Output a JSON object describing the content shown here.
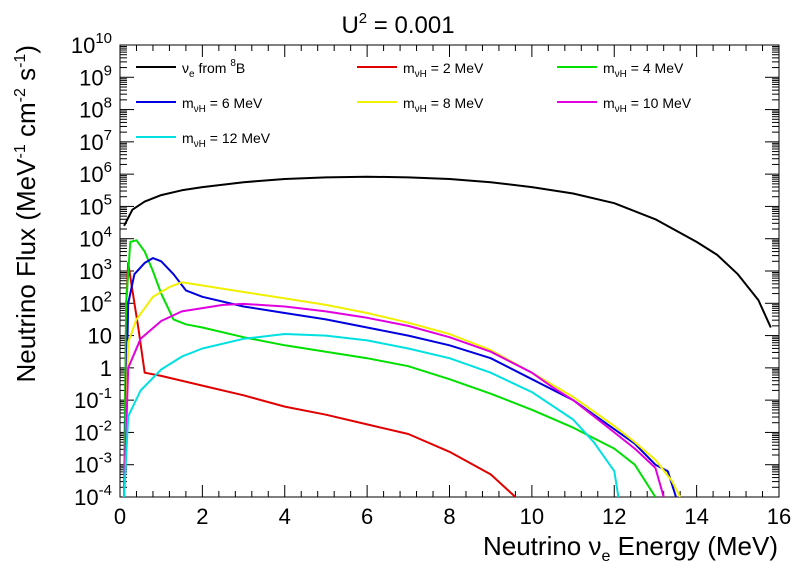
{
  "chart_data": {
    "type": "line",
    "title": {
      "base": "U",
      "sup": "2",
      "rest": " = 0.001"
    },
    "xlabel": {
      "pre": "Neutrino ",
      "nu": "ν",
      "sub": "e",
      "post": " Energy (MeV)"
    },
    "ylabel": {
      "pre": "Neutrino Flux (MeV",
      "sup1": "-1",
      "mid": " cm",
      "sup2": "-2",
      "mid2": " s",
      "sup3": "-1",
      "post": ")"
    },
    "xlim": [
      0,
      16
    ],
    "ylim_log10": [
      -4,
      10
    ],
    "xticks": [
      {
        "v": 0,
        "label": "0"
      },
      {
        "v": 2,
        "label": "2"
      },
      {
        "v": 4,
        "label": "4"
      },
      {
        "v": 6,
        "label": "6"
      },
      {
        "v": 8,
        "label": "8"
      },
      {
        "v": 10,
        "label": "10"
      },
      {
        "v": 12,
        "label": "12"
      },
      {
        "v": 14,
        "label": "14"
      },
      {
        "v": 16,
        "label": "16"
      }
    ],
    "yticks": [
      {
        "e": -4,
        "base": "10",
        "sup": "-4"
      },
      {
        "e": -3,
        "base": "10",
        "sup": "-3"
      },
      {
        "e": -2,
        "base": "10",
        "sup": "-2"
      },
      {
        "e": -1,
        "base": "10",
        "sup": "-1"
      },
      {
        "e": 0,
        "base": "1",
        "sup": ""
      },
      {
        "e": 1,
        "base": "10",
        "sup": ""
      },
      {
        "e": 2,
        "base": "10",
        "sup": "2"
      },
      {
        "e": 3,
        "base": "10",
        "sup": "3"
      },
      {
        "e": 4,
        "base": "10",
        "sup": "4"
      },
      {
        "e": 5,
        "base": "10",
        "sup": "5"
      },
      {
        "e": 6,
        "base": "10",
        "sup": "6"
      },
      {
        "e": 7,
        "base": "10",
        "sup": "7"
      },
      {
        "e": 8,
        "base": "10",
        "sup": "8"
      },
      {
        "e": 9,
        "base": "10",
        "sup": "9"
      },
      {
        "e": 10,
        "base": "10",
        "sup": "10"
      }
    ],
    "legend_position": "top",
    "series": [
      {
        "name": "ve from 8B",
        "legend": {
          "pre": "ν",
          "sub": "e",
          "mid": " from ",
          "sup": "8",
          "post": "B"
        },
        "color": "#000000",
        "points": [
          [
            0.1,
            4.4
          ],
          [
            0.3,
            4.9
          ],
          [
            0.6,
            5.15
          ],
          [
            1.0,
            5.35
          ],
          [
            1.5,
            5.5
          ],
          [
            2.0,
            5.6
          ],
          [
            3.0,
            5.75
          ],
          [
            4.0,
            5.85
          ],
          [
            5.0,
            5.9
          ],
          [
            6.0,
            5.92
          ],
          [
            7.0,
            5.9
          ],
          [
            8.0,
            5.85
          ],
          [
            9.0,
            5.75
          ],
          [
            10.0,
            5.6
          ],
          [
            11.0,
            5.4
          ],
          [
            12.0,
            5.1
          ],
          [
            13.0,
            4.6
          ],
          [
            14.0,
            3.9
          ],
          [
            14.5,
            3.5
          ],
          [
            15.0,
            2.9
          ],
          [
            15.5,
            2.1
          ],
          [
            15.8,
            1.25
          ]
        ]
      },
      {
        "name": "m_vH = 2 MeV",
        "legend": {
          "pre": "m",
          "sub": "νH",
          "mid": " = 2 MeV",
          "sup": "",
          "post": ""
        },
        "color": "#e00000",
        "points": [
          [
            0.1,
            -4.0
          ],
          [
            0.15,
            2.0
          ],
          [
            0.2,
            3.25
          ],
          [
            0.3,
            2.4
          ],
          [
            0.45,
            1.2
          ],
          [
            0.6,
            -0.15
          ],
          [
            1.0,
            -0.25
          ],
          [
            2.0,
            -0.55
          ],
          [
            3.0,
            -0.85
          ],
          [
            4.0,
            -1.2
          ],
          [
            5.0,
            -1.45
          ],
          [
            6.0,
            -1.75
          ],
          [
            7.0,
            -2.05
          ],
          [
            8.0,
            -2.6
          ],
          [
            9.0,
            -3.3
          ],
          [
            9.6,
            -4.0
          ]
        ]
      },
      {
        "name": "m_vH = 4 MeV",
        "legend": {
          "pre": "m",
          "sub": "νH",
          "mid": " = 4 MeV",
          "sup": "",
          "post": ""
        },
        "color": "#00e000",
        "points": [
          [
            0.1,
            -4.0
          ],
          [
            0.15,
            2.0
          ],
          [
            0.25,
            3.9
          ],
          [
            0.4,
            3.95
          ],
          [
            0.6,
            3.6
          ],
          [
            0.8,
            3.0
          ],
          [
            1.0,
            2.3
          ],
          [
            1.3,
            1.5
          ],
          [
            1.6,
            1.35
          ],
          [
            2.0,
            1.25
          ],
          [
            3.0,
            0.95
          ],
          [
            4.0,
            0.7
          ],
          [
            5.0,
            0.5
          ],
          [
            6.0,
            0.3
          ],
          [
            7.0,
            0.05
          ],
          [
            8.0,
            -0.35
          ],
          [
            9.0,
            -0.8
          ],
          [
            10.0,
            -1.3
          ],
          [
            11.0,
            -1.85
          ],
          [
            12.0,
            -2.5
          ],
          [
            12.5,
            -3.0
          ],
          [
            13.0,
            -4.0
          ]
        ]
      },
      {
        "name": "m_vH = 6 MeV",
        "legend": {
          "pre": "m",
          "sub": "νH",
          "mid": " = 6 MeV",
          "sup": "",
          "post": ""
        },
        "color": "#0000e0",
        "points": [
          [
            0.1,
            -4.0
          ],
          [
            0.2,
            2.0
          ],
          [
            0.35,
            2.9
          ],
          [
            0.6,
            3.25
          ],
          [
            0.8,
            3.4
          ],
          [
            1.0,
            3.3
          ],
          [
            1.3,
            2.9
          ],
          [
            1.6,
            2.4
          ],
          [
            2.0,
            2.2
          ],
          [
            3.0,
            1.9
          ],
          [
            4.0,
            1.7
          ],
          [
            5.0,
            1.5
          ],
          [
            6.0,
            1.25
          ],
          [
            7.0,
            1.0
          ],
          [
            8.0,
            0.7
          ],
          [
            9.0,
            0.3
          ],
          [
            10.0,
            -0.35
          ],
          [
            11.0,
            -1.0
          ],
          [
            12.0,
            -1.9
          ],
          [
            12.5,
            -2.35
          ],
          [
            13.0,
            -3.0
          ],
          [
            13.3,
            -3.2
          ],
          [
            13.5,
            -4.0
          ]
        ]
      },
      {
        "name": "m_vH = 8 MeV",
        "legend": {
          "pre": "m",
          "sub": "νH",
          "mid": " = 8 MeV",
          "sup": "",
          "post": ""
        },
        "color": "#f0f000",
        "points": [
          [
            0.1,
            -4.0
          ],
          [
            0.2,
            0.8
          ],
          [
            0.4,
            1.5
          ],
          [
            0.8,
            2.2
          ],
          [
            1.2,
            2.5
          ],
          [
            1.5,
            2.65
          ],
          [
            2.0,
            2.55
          ],
          [
            3.0,
            2.35
          ],
          [
            4.0,
            2.15
          ],
          [
            5.0,
            1.95
          ],
          [
            6.0,
            1.7
          ],
          [
            7.0,
            1.4
          ],
          [
            8.0,
            1.05
          ],
          [
            9.0,
            0.55
          ],
          [
            10.0,
            -0.15
          ],
          [
            11.0,
            -0.9
          ],
          [
            12.0,
            -1.8
          ],
          [
            12.5,
            -2.3
          ],
          [
            13.0,
            -2.85
          ],
          [
            13.4,
            -3.5
          ],
          [
            13.6,
            -4.0
          ]
        ]
      },
      {
        "name": "m_vH = 10 MeV",
        "legend": {
          "pre": "m",
          "sub": "νH",
          "mid": " = 10 MeV",
          "sup": "",
          "post": ""
        },
        "color": "#e000e0",
        "points": [
          [
            0.1,
            -4.0
          ],
          [
            0.2,
            0.0
          ],
          [
            0.5,
            0.9
          ],
          [
            1.0,
            1.45
          ],
          [
            1.5,
            1.75
          ],
          [
            2.0,
            1.85
          ],
          [
            2.5,
            1.95
          ],
          [
            3.0,
            1.98
          ],
          [
            4.0,
            1.9
          ],
          [
            5.0,
            1.75
          ],
          [
            6.0,
            1.55
          ],
          [
            7.0,
            1.3
          ],
          [
            8.0,
            0.95
          ],
          [
            9.0,
            0.5
          ],
          [
            10.0,
            -0.15
          ],
          [
            10.5,
            -0.6
          ],
          [
            11.0,
            -1.0
          ],
          [
            12.0,
            -2.0
          ],
          [
            12.5,
            -2.5
          ],
          [
            13.0,
            -3.1
          ],
          [
            13.2,
            -4.0
          ]
        ]
      },
      {
        "name": "m_vH = 12 MeV",
        "legend": {
          "pre": "m",
          "sub": "νH",
          "mid": " = 12 MeV",
          "sup": "",
          "post": ""
        },
        "color": "#00e0e0",
        "points": [
          [
            0.1,
            -4.0
          ],
          [
            0.2,
            -1.5
          ],
          [
            0.5,
            -0.7
          ],
          [
            1.0,
            -0.05
          ],
          [
            1.5,
            0.35
          ],
          [
            2.0,
            0.6
          ],
          [
            3.0,
            0.9
          ],
          [
            4.0,
            1.05
          ],
          [
            5.0,
            1.0
          ],
          [
            6.0,
            0.85
          ],
          [
            7.0,
            0.6
          ],
          [
            8.0,
            0.3
          ],
          [
            9.0,
            -0.15
          ],
          [
            10.0,
            -0.75
          ],
          [
            11.0,
            -1.6
          ],
          [
            11.5,
            -2.3
          ],
          [
            12.0,
            -3.2
          ],
          [
            12.1,
            -4.0
          ]
        ]
      }
    ]
  }
}
